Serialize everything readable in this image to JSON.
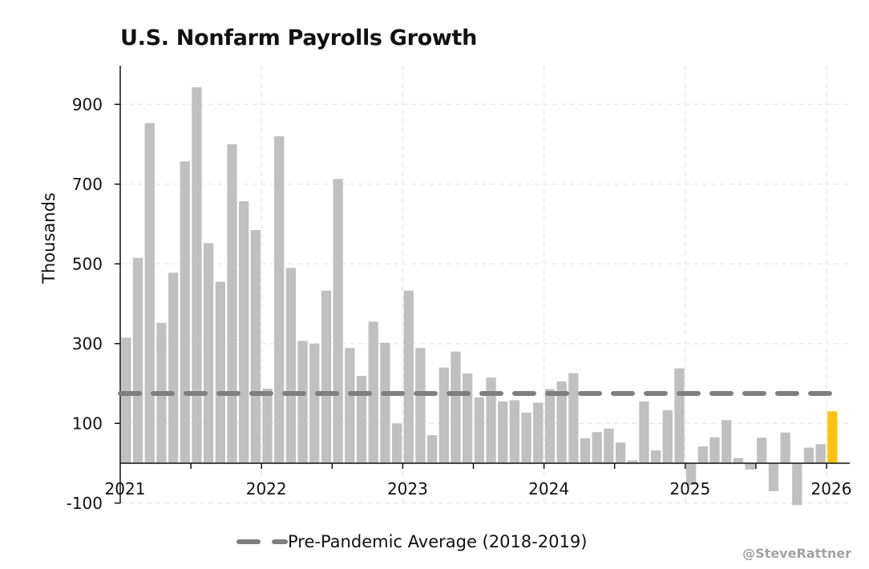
{
  "chart_data": {
    "type": "bar",
    "title": "U.S. Nonfarm Payrolls Growth",
    "xlabel": "",
    "ylabel": "Thousands",
    "x_start": "2021-01",
    "x_ticks": [
      "2021",
      "2022",
      "2023",
      "2024",
      "2025",
      "2026"
    ],
    "y_ticks": [
      -100,
      100,
      300,
      500,
      700,
      900
    ],
    "ylim": [
      -100,
      1000
    ],
    "grid": true,
    "legend_position": "bottom",
    "bar_color": "#c0c0c0",
    "highlight_color": "#ffc20e",
    "highlight_last": true,
    "series": [
      {
        "values": [
          315,
          515,
          853,
          352,
          478,
          757,
          943,
          552,
          455,
          800,
          657,
          585,
          187,
          820,
          490,
          307,
          300,
          433,
          713,
          289,
          219,
          355,
          302,
          100,
          433,
          289,
          70,
          240,
          280,
          225,
          165,
          215,
          155,
          158,
          127,
          152,
          186,
          205,
          226,
          63,
          78,
          87,
          52,
          7,
          155,
          32,
          133,
          238,
          -55,
          42,
          65,
          108,
          13,
          -16,
          64,
          -70,
          77,
          -105,
          39,
          48,
          130
        ]
      }
    ],
    "reference_lines": [
      {
        "name": "Pre-Pandemic Average (2018-2019)",
        "value": 175,
        "color": "#7f7f7f"
      }
    ]
  },
  "credit": "@SteveRattner"
}
